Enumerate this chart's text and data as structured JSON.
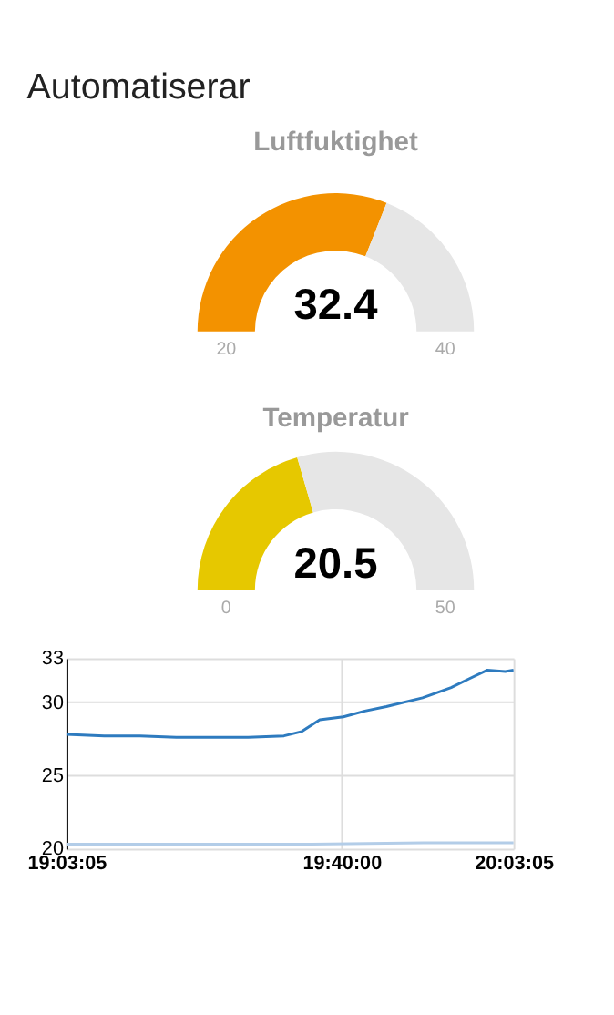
{
  "chart_data": [
    {
      "type": "donut",
      "title": "Automatiserar",
      "subtitle": "Luftfuktighet",
      "categories": [
        null,
        null
      ],
      "values": [
        62,
        38
      ],
      "colors": [
        "#f39200",
        "#e6e6e6"
      ],
      "annotations": [
        "32.4",
        "20",
        "40"
      ]
    },
    {
      "type": "donut",
      "subtitle": "Temperatur",
      "categories": [
        null,
        null
      ],
      "values": [
        41,
        59
      ],
      "colors": [
        "#e6c800",
        "#e6e6e6"
      ],
      "annotations": [
        "20.5",
        "0",
        "50"
      ]
    },
    {
      "type": "line",
      "xlim": [
        19.05139,
        20.05139
      ],
      "ylim": [
        20,
        33
      ],
      "yticks": [
        20,
        25,
        30,
        33
      ],
      "xticks": [
        {
          "value": 19.05139,
          "label": "19:03:05"
        },
        {
          "value": 19.66667,
          "label": "19:40:00"
        },
        {
          "value": 20.05139,
          "label": "20:03:05"
        }
      ],
      "grid": true,
      "series": [
        {
          "color": "#2e7bbf",
          "x": [
            19.0514,
            19.136,
            19.216,
            19.297,
            19.377,
            19.458,
            19.538,
            19.578,
            19.618,
            19.671,
            19.719,
            19.767,
            19.848,
            19.912,
            19.952,
            19.993,
            20.033,
            20.05139
          ],
          "values": [
            27.8,
            27.7,
            27.7,
            27.6,
            27.6,
            27.6,
            27.7,
            28.0,
            28.8,
            29.0,
            29.4,
            29.7,
            30.3,
            31.0,
            31.6,
            32.2,
            32.1,
            32.2
          ]
        },
        {
          "color": "#b3cde8",
          "x": [
            19.0514,
            19.3,
            19.6,
            19.85,
            20.05139
          ],
          "values": [
            20.3,
            20.3,
            20.3,
            20.4,
            20.4
          ]
        }
      ]
    }
  ]
}
